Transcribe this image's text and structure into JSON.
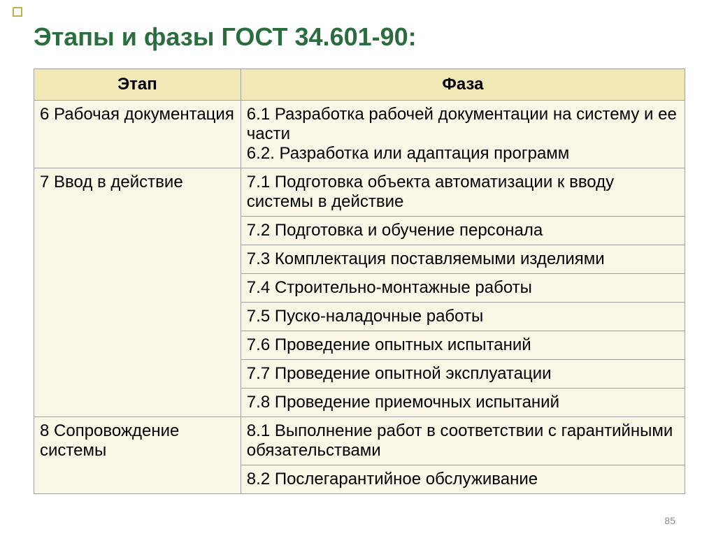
{
  "title": "Этапы и фазы ГОСТ 34.601-90:",
  "headers": {
    "stage": "Этап",
    "phase": "Фаза"
  },
  "rows": [
    {
      "stage": "6 Рабочая документация",
      "phase": "6.1 Разработка рабочей документации на систему и ее части\n6.2. Разработка или адаптация программ",
      "stageRowspan": 1
    },
    {
      "stage": "7 Ввод в действие",
      "phase": "7.1 Подготовка объекта автоматизации к вводу системы в действие",
      "stageRowspan": 8
    },
    {
      "phase": "7.2 Подготовка и обучение персонала"
    },
    {
      "phase": "7.3 Комплектация поставляемыми изделиями"
    },
    {
      "phase": "7.4 Строительно-монтажные работы"
    },
    {
      "phase": "7.5 Пуско-наладочные работы"
    },
    {
      "phase": "7.6 Проведение опытных испытаний"
    },
    {
      "phase": "7.7 Проведение опытной эксплуатации"
    },
    {
      "phase": "7.8 Проведение приемочных испытаний"
    },
    {
      "stage": "8 Сопровождение системы",
      "phase": "8.1 Выполнение работ в соответствии с гарантийными обязательствами",
      "stageRowspan": 2
    },
    {
      "phase": "8.2 Послегарантийное обслуживание"
    }
  ],
  "pageNumber": "85",
  "colors": {
    "title": "#2a6e3f",
    "headerBg": "#f3e8b8",
    "cellBg": "#fbf7e6",
    "border": "#a0a0a0"
  }
}
